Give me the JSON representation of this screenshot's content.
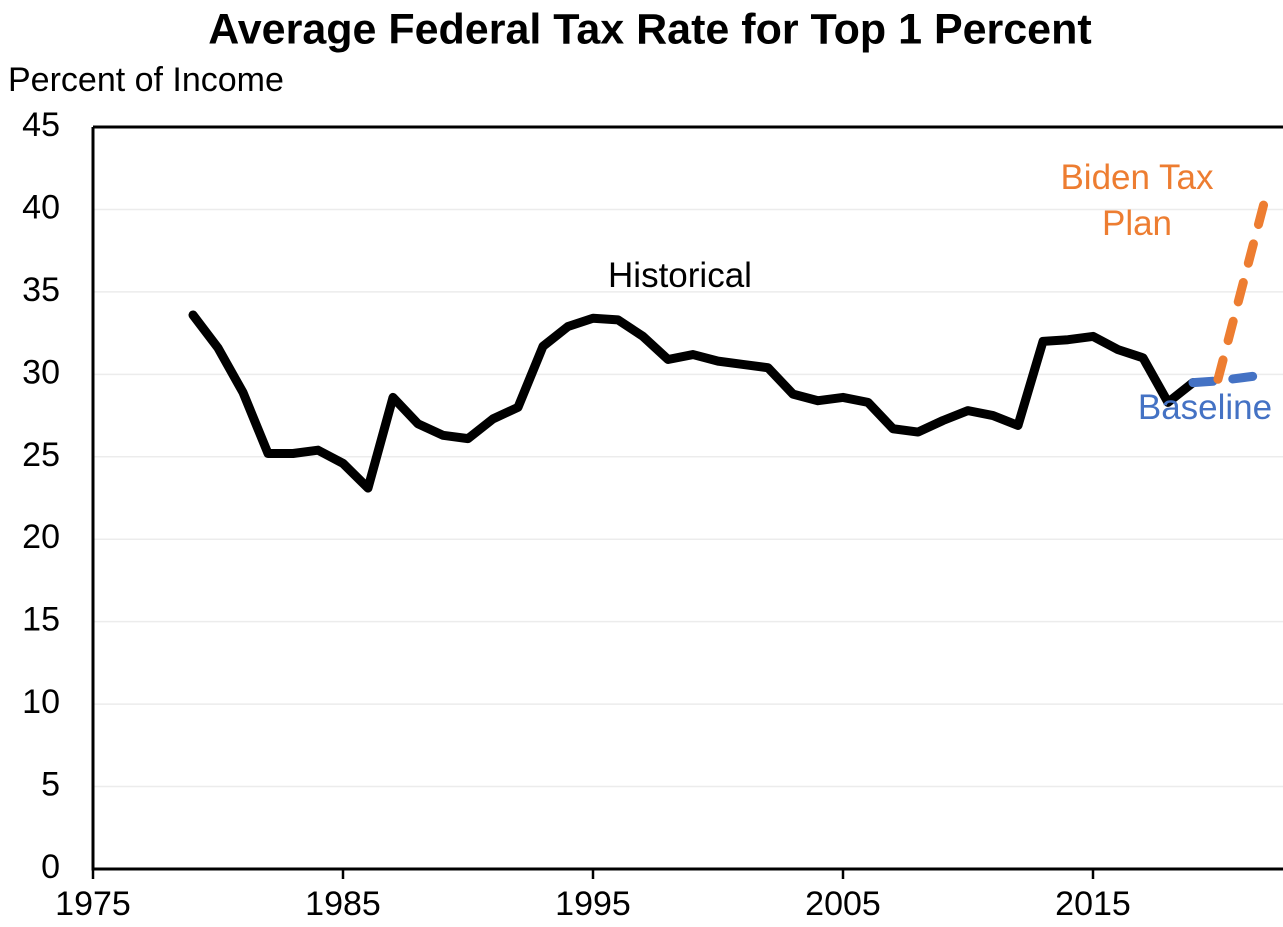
{
  "chart_data": {
    "type": "line",
    "title": "Average Federal Tax Rate for Top 1 Percent",
    "y_label": "Percent of Income",
    "xlim": [
      1975,
      2022.6
    ],
    "xticks": [
      1975,
      1985,
      1995,
      2005,
      2015
    ],
    "ylim": [
      0,
      45
    ],
    "yticks": [
      0,
      5,
      10,
      15,
      20,
      25,
      30,
      35,
      40,
      45
    ],
    "grid": true,
    "series": [
      {
        "name": "Historical",
        "color": "#000000",
        "dashed": false,
        "x": [
          1979,
          1980,
          1981,
          1982,
          1983,
          1984,
          1985,
          1986,
          1987,
          1988,
          1989,
          1990,
          1991,
          1992,
          1993,
          1994,
          1995,
          1996,
          1997,
          1998,
          1999,
          2000,
          2001,
          2002,
          2003,
          2004,
          2005,
          2006,
          2007,
          2008,
          2009,
          2010,
          2011,
          2012,
          2013,
          2014,
          2015,
          2016,
          2017,
          2018,
          2019
        ],
        "values": [
          33.6,
          31.6,
          28.9,
          25.2,
          25.2,
          25.4,
          24.6,
          23.1,
          28.6,
          27.0,
          26.3,
          26.1,
          27.3,
          28.0,
          31.7,
          32.9,
          33.4,
          33.3,
          32.3,
          30.9,
          31.2,
          30.8,
          30.6,
          30.4,
          28.8,
          28.4,
          28.6,
          28.3,
          26.7,
          26.5,
          27.2,
          27.8,
          27.5,
          26.9,
          32.0,
          32.1,
          32.3,
          31.5,
          31.0,
          28.3,
          29.5
        ]
      },
      {
        "name": "Baseline",
        "color": "#4472c4",
        "dashed": true,
        "x": [
          2019,
          2020,
          2021,
          2022
        ],
        "values": [
          29.5,
          29.6,
          29.8,
          30.0
        ]
      },
      {
        "name": "Biden Tax Plan",
        "color": "#ed7d31",
        "dashed": true,
        "x": [
          2020,
          2021,
          2022
        ],
        "values": [
          29.7,
          35.5,
          41.3
        ]
      }
    ]
  }
}
